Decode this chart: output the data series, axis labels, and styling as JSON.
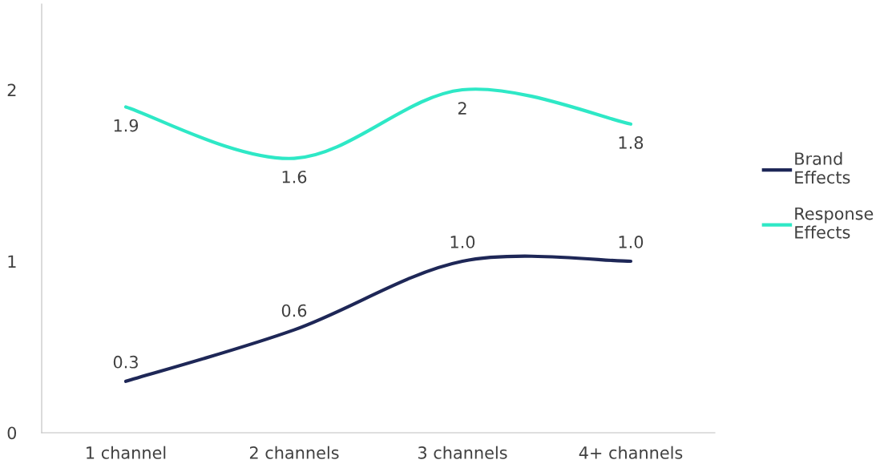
{
  "chart_data": {
    "type": "line",
    "categories": [
      "1 channel",
      "2 channels",
      "3 channels",
      "4+ channels"
    ],
    "series": [
      {
        "name": "Brand Effects",
        "color": "#1e2757",
        "values": [
          0.3,
          0.6,
          1.0,
          1.0
        ],
        "value_labels": [
          "0.3",
          "0.6",
          "1.0",
          "1.0"
        ]
      },
      {
        "name": "Response Effects",
        "color": "#2ee8c6",
        "values": [
          1.9,
          1.6,
          2,
          1.8
        ],
        "value_labels": [
          "1.9",
          "1.6",
          "2",
          "1.8"
        ]
      }
    ],
    "ylim": [
      0,
      2.5
    ],
    "yticks": [
      0,
      1,
      2
    ],
    "grid": false,
    "legend": "right",
    "marker": "none",
    "line_style": "solid"
  }
}
